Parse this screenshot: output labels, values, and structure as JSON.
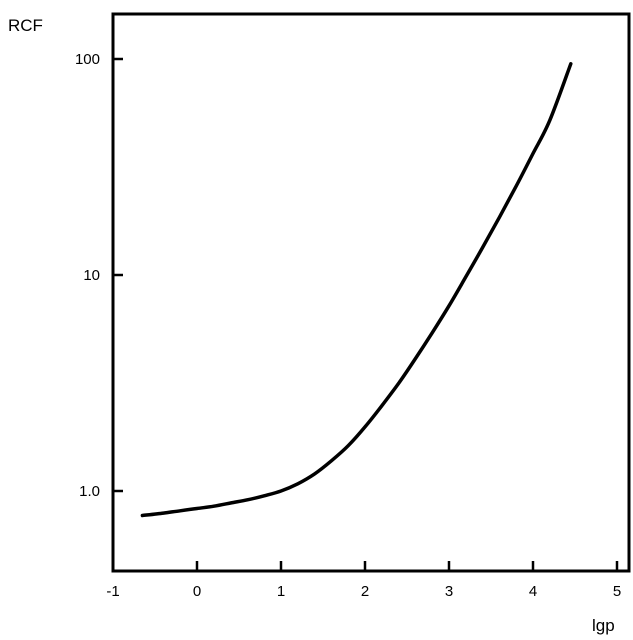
{
  "chart_data": {
    "type": "line",
    "title": "",
    "xlabel": "lgp",
    "ylabel": "RCF",
    "xlim": [
      -1,
      5.2
    ],
    "ylim": [
      0.45,
      160
    ],
    "yscale": "log",
    "grid": false,
    "x_ticks": [
      -1,
      0,
      1,
      2,
      3,
      4,
      5
    ],
    "x_tick_labels": [
      "-1",
      "0",
      "1",
      "2",
      "3",
      "4",
      "5"
    ],
    "y_ticks": [
      1,
      10,
      100
    ],
    "y_tick_labels": [
      "1.0",
      "10",
      "100"
    ],
    "series": [
      {
        "color": "#000000",
        "x": [
          -0.65,
          -0.4,
          -0.2,
          0,
          0.2,
          0.4,
          0.6,
          0.8,
          1.0,
          1.2,
          1.4,
          1.6,
          1.8,
          2.0,
          2.2,
          2.4,
          2.6,
          2.8,
          3.0,
          3.2,
          3.4,
          3.6,
          3.8,
          4.0,
          4.2,
          4.45
        ],
        "y": [
          0.77,
          0.79,
          0.81,
          0.83,
          0.85,
          0.88,
          0.91,
          0.95,
          1.0,
          1.08,
          1.2,
          1.38,
          1.62,
          1.98,
          2.48,
          3.15,
          4.1,
          5.4,
          7.2,
          9.8,
          13.4,
          18.5,
          25.8,
          36.5,
          52,
          95
        ]
      }
    ]
  }
}
